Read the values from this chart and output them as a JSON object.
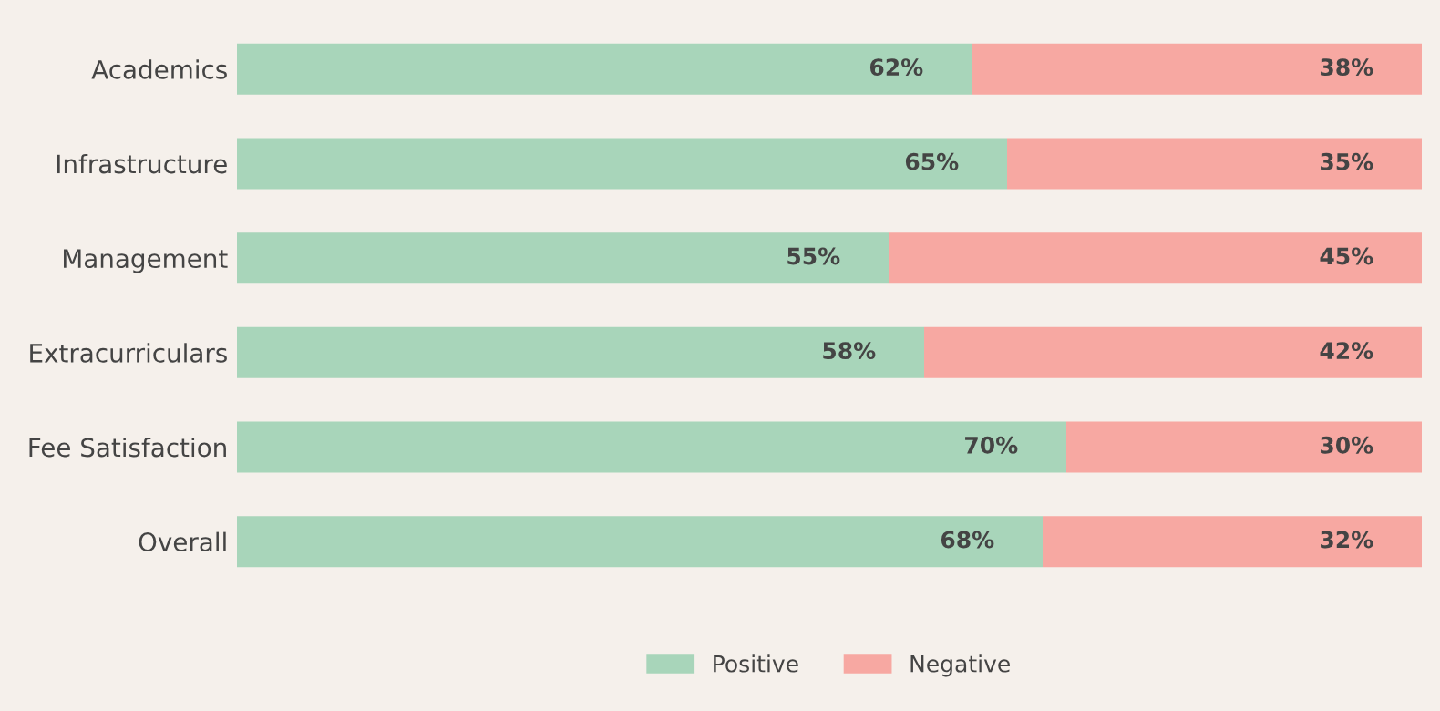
{
  "chart_data": {
    "type": "bar",
    "orientation": "horizontal",
    "stacked": true,
    "categories": [
      "Academics",
      "Infrastructure",
      "Management",
      "Extracurriculars",
      "Fee Satisfaction",
      "Overall"
    ],
    "series": [
      {
        "name": "Positive",
        "color": "#a8d5ba",
        "values": [
          62,
          65,
          55,
          58,
          70,
          68
        ],
        "value_labels": [
          "62%",
          "65%",
          "55%",
          "58%",
          "70%",
          "68%"
        ]
      },
      {
        "name": "Negative",
        "color": "#f7a8a2",
        "values": [
          38,
          35,
          45,
          42,
          30,
          32
        ],
        "value_labels": [
          "38%",
          "35%",
          "45%",
          "42%",
          "30%",
          "32%"
        ]
      }
    ],
    "xlim": [
      0,
      100
    ],
    "tick_labels": "y",
    "legend": "bottom",
    "grid": false
  }
}
